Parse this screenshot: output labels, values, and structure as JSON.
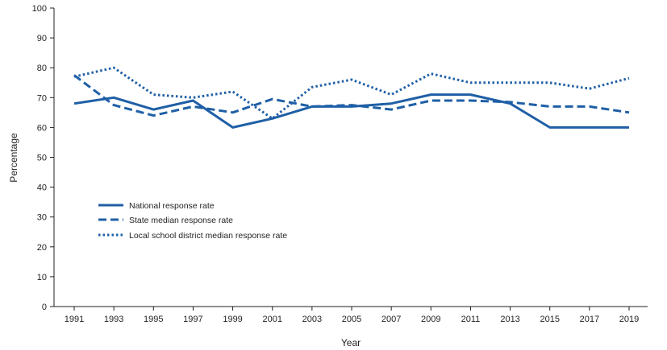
{
  "chart_data": {
    "type": "line",
    "title": "",
    "xlabel": "Year",
    "ylabel": "Percentage",
    "ylim": [
      0,
      100
    ],
    "yticks": [
      0,
      10,
      20,
      30,
      40,
      50,
      60,
      70,
      80,
      90,
      100
    ],
    "grid": false,
    "legend_position": "left-middle",
    "x": [
      "1991",
      "1993",
      "1995",
      "1997",
      "1999",
      "2001",
      "2003",
      "2005",
      "2007",
      "2009",
      "2011",
      "2013",
      "2015",
      "2017",
      "2019"
    ],
    "series": [
      {
        "name": "National response rate",
        "style": "solid",
        "color": "#1f5fa6",
        "values": [
          68,
          70,
          66,
          69,
          60,
          63,
          67,
          67,
          68,
          71,
          71,
          68,
          60,
          60,
          60
        ]
      },
      {
        "name": "State median response rate",
        "style": "dashed",
        "color": "#1f5fa6",
        "values": [
          77.5,
          67.5,
          64,
          67,
          65,
          69.5,
          67,
          67.5,
          66,
          69,
          69,
          68.5,
          67,
          67,
          65
        ]
      },
      {
        "name": "Local school district median response rate",
        "style": "dotted",
        "color": "#1f5fa6",
        "values": [
          77,
          80,
          71,
          70,
          72,
          63,
          73.5,
          76,
          71,
          78,
          75,
          75,
          75,
          73,
          76.5
        ]
      }
    ]
  }
}
